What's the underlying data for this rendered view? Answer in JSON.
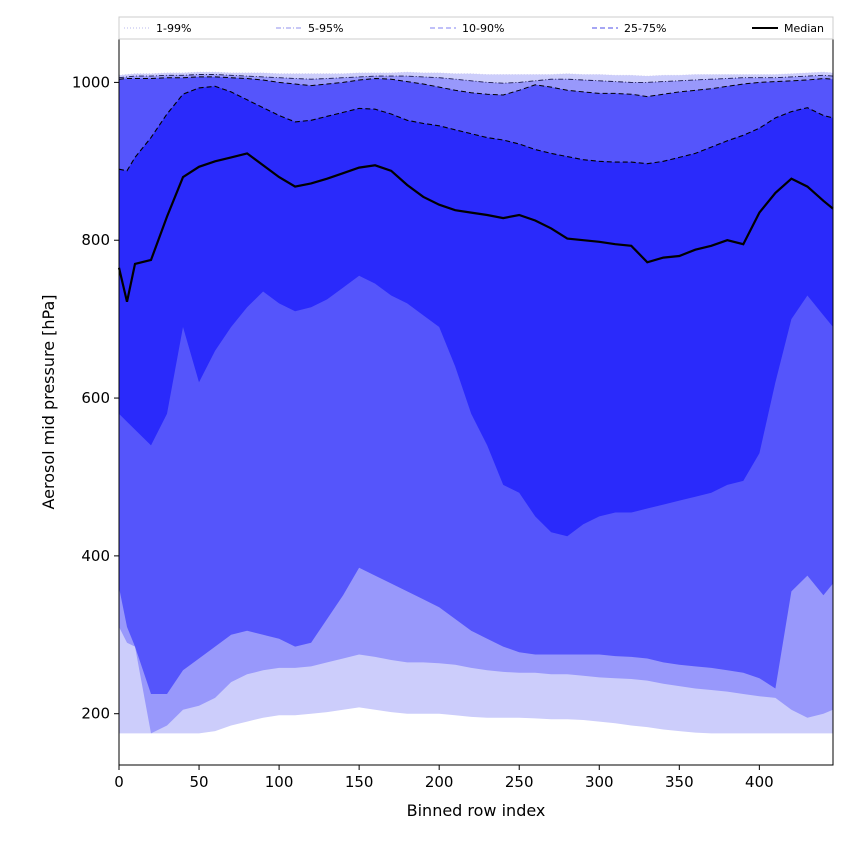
{
  "chart_data": {
    "type": "area",
    "xlabel": "Binned row index",
    "ylabel": "Aerosol mid pressure [hPa]",
    "xlim": [
      0,
      446
    ],
    "ylim": [
      135,
      1055
    ],
    "x_ticks": [
      0,
      50,
      100,
      150,
      200,
      250,
      300,
      350,
      400
    ],
    "y_ticks": [
      200,
      400,
      600,
      800,
      1000
    ],
    "grid": false,
    "legend_position": "top",
    "legend": [
      {
        "label": "1-99%",
        "style": "dotted",
        "color": "#c8c8f0"
      },
      {
        "label": "5-95%",
        "style": "dashdot",
        "color": "#a8a8f0"
      },
      {
        "label": "10-90%",
        "style": "dashed",
        "color": "#9a9af5"
      },
      {
        "label": "25-75%",
        "style": "dashed",
        "color": "#7070ee"
      },
      {
        "label": "Median",
        "style": "solid",
        "color": "#000000"
      }
    ],
    "x": [
      0,
      5,
      10,
      20,
      30,
      40,
      50,
      60,
      70,
      80,
      90,
      100,
      110,
      120,
      130,
      140,
      150,
      160,
      170,
      180,
      190,
      200,
      210,
      220,
      230,
      240,
      250,
      260,
      270,
      280,
      290,
      300,
      310,
      320,
      330,
      340,
      350,
      360,
      370,
      380,
      390,
      400,
      410,
      420,
      430,
      440,
      446
    ],
    "series": [
      {
        "name": "99%",
        "values": [
          1009,
          1010,
          1011,
          1011,
          1012,
          1012,
          1013,
          1013,
          1012,
          1012,
          1012,
          1011,
          1011,
          1011,
          1011,
          1011,
          1012,
          1012,
          1012,
          1013,
          1012,
          1012,
          1011,
          1011,
          1010,
          1010,
          1010,
          1010,
          1010,
          1011,
          1010,
          1010,
          1009,
          1009,
          1008,
          1009,
          1009,
          1010,
          1010,
          1010,
          1010,
          1010,
          1010,
          1011,
          1012,
          1013,
          1012
        ]
      },
      {
        "name": "95%",
        "values": [
          1006,
          1007,
          1008,
          1008,
          1009,
          1009,
          1010,
          1010,
          1009,
          1008,
          1007,
          1006,
          1005,
          1004,
          1005,
          1006,
          1007,
          1008,
          1008,
          1008,
          1007,
          1006,
          1004,
          1002,
          1000,
          999,
          1000,
          1002,
          1004,
          1004,
          1003,
          1002,
          1001,
          1000,
          1000,
          1001,
          1002,
          1003,
          1004,
          1005,
          1006,
          1006,
          1006,
          1007,
          1008,
          1009,
          1008
        ]
      },
      {
        "name": "90%",
        "values": [
          1004,
          1005,
          1005,
          1005,
          1006,
          1006,
          1007,
          1007,
          1006,
          1005,
          1003,
          1000,
          998,
          996,
          998,
          1000,
          1003,
          1005,
          1004,
          1001,
          998,
          994,
          990,
          987,
          985,
          984,
          990,
          997,
          994,
          990,
          988,
          986,
          986,
          985,
          982,
          985,
          988,
          990,
          992,
          995,
          998,
          1000,
          1001,
          1002,
          1003,
          1005,
          1004
        ]
      },
      {
        "name": "75%",
        "values": [
          890,
          888,
          905,
          930,
          960,
          985,
          993,
          995,
          988,
          978,
          968,
          958,
          950,
          952,
          957,
          962,
          967,
          966,
          960,
          952,
          948,
          945,
          940,
          935,
          930,
          927,
          922,
          915,
          910,
          906,
          902,
          900,
          899,
          899,
          897,
          900,
          905,
          910,
          918,
          926,
          933,
          942,
          955,
          963,
          968,
          958,
          955
        ]
      },
      {
        "name": "Median",
        "values": [
          765,
          722,
          770,
          775,
          830,
          880,
          893,
          900,
          905,
          910,
          895,
          880,
          868,
          872,
          878,
          885,
          892,
          895,
          888,
          870,
          855,
          845,
          838,
          835,
          832,
          828,
          832,
          825,
          815,
          802,
          800,
          798,
          795,
          793,
          772,
          778,
          780,
          788,
          793,
          800,
          795,
          835,
          860,
          878,
          868,
          850,
          840
        ]
      },
      {
        "name": "25%",
        "values": [
          580,
          570,
          560,
          540,
          580,
          690,
          620,
          660,
          690,
          715,
          735,
          720,
          710,
          715,
          725,
          740,
          755,
          745,
          730,
          720,
          705,
          690,
          640,
          580,
          540,
          490,
          480,
          450,
          430,
          425,
          440,
          450,
          455,
          455,
          460,
          465,
          470,
          475,
          480,
          490,
          495,
          530,
          620,
          700,
          730,
          705,
          690
        ]
      },
      {
        "name": "10%",
        "values": [
          360,
          310,
          285,
          225,
          225,
          255,
          270,
          285,
          300,
          305,
          300,
          295,
          285,
          290,
          320,
          350,
          385,
          375,
          365,
          355,
          345,
          335,
          320,
          305,
          295,
          285,
          278,
          275,
          275,
          275,
          275,
          275,
          273,
          272,
          270,
          265,
          262,
          260,
          258,
          255,
          252,
          245,
          232,
          355,
          375,
          350,
          365
        ]
      },
      {
        "name": "5%",
        "values": [
          310,
          290,
          285,
          175,
          185,
          205,
          210,
          220,
          240,
          250,
          255,
          258,
          258,
          260,
          265,
          270,
          275,
          272,
          268,
          265,
          265,
          264,
          262,
          258,
          255,
          253,
          252,
          252,
          250,
          250,
          248,
          246,
          245,
          244,
          242,
          238,
          235,
          232,
          230,
          228,
          225,
          222,
          220,
          205,
          195,
          200,
          205
        ]
      },
      {
        "name": "1%",
        "values": [
          175,
          175,
          175,
          175,
          175,
          175,
          175,
          178,
          185,
          190,
          195,
          198,
          198,
          200,
          202,
          205,
          208,
          205,
          202,
          200,
          200,
          200,
          198,
          196,
          195,
          195,
          195,
          194,
          193,
          193,
          192,
          190,
          188,
          185,
          183,
          180,
          178,
          176,
          175,
          175,
          175,
          175,
          175,
          175,
          175,
          175,
          175
        ]
      }
    ]
  }
}
